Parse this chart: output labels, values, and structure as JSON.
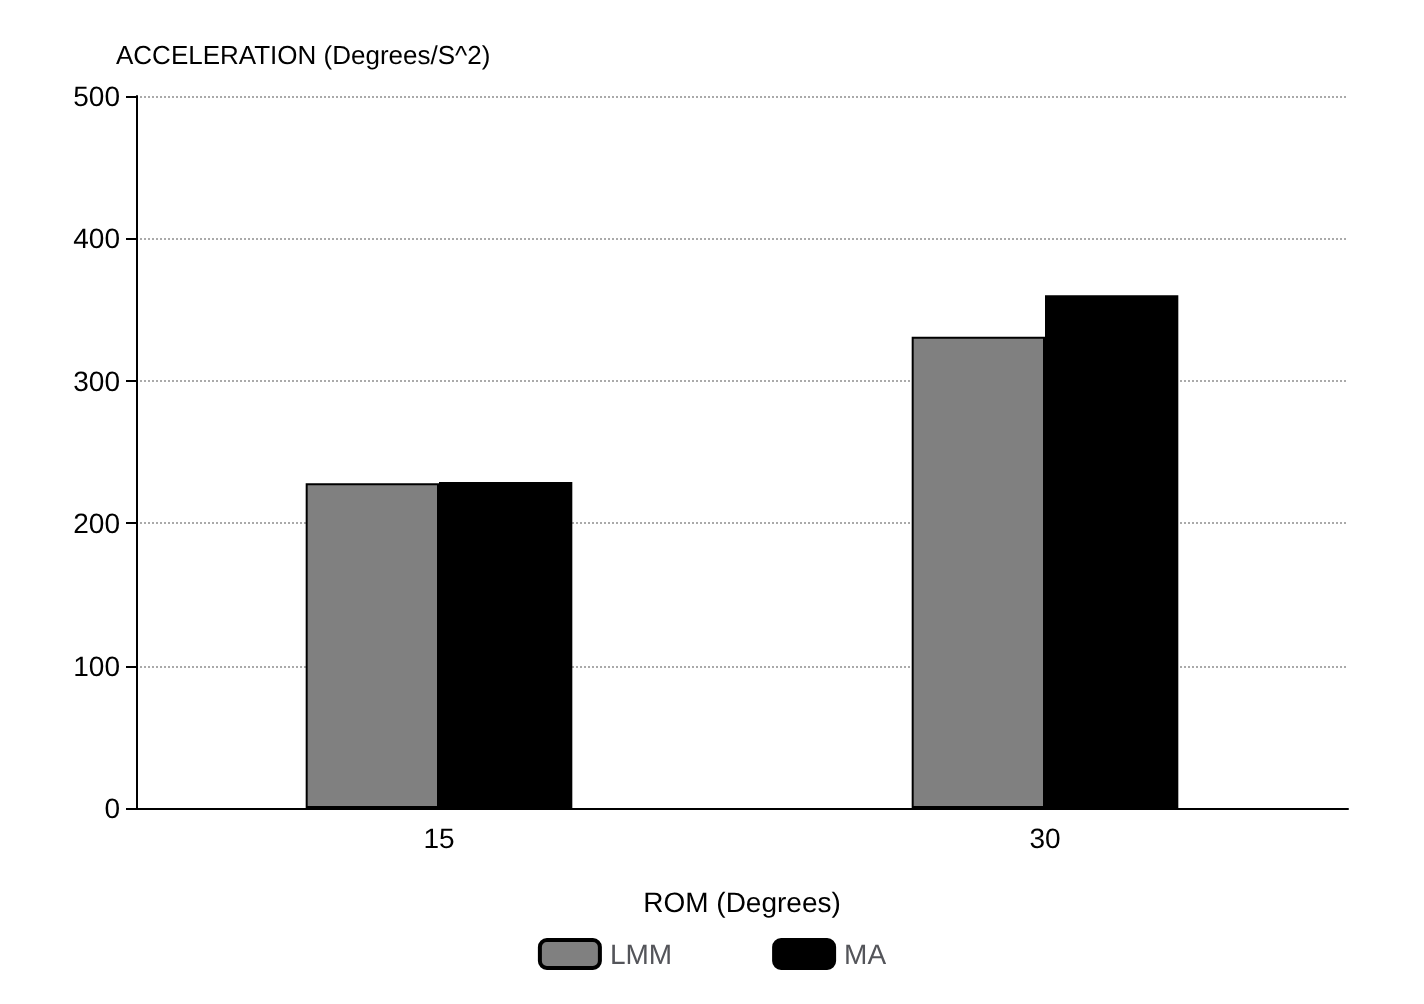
{
  "chart_data": {
    "type": "bar",
    "ylabel": "ACCELERATION (Degrees/S^2)",
    "xlabel": "ROM (Degrees)",
    "categories": [
      "15",
      "30"
    ],
    "series": [
      {
        "name": "LMM",
        "color": "#808080",
        "values": [
          228,
          331
        ]
      },
      {
        "name": "MA",
        "color": "#000000",
        "values": [
          229,
          360
        ]
      }
    ],
    "ylim": [
      0,
      500
    ],
    "yticks": [
      0,
      100,
      200,
      300,
      400,
      500
    ],
    "grid": "y",
    "legend": "bottom"
  }
}
